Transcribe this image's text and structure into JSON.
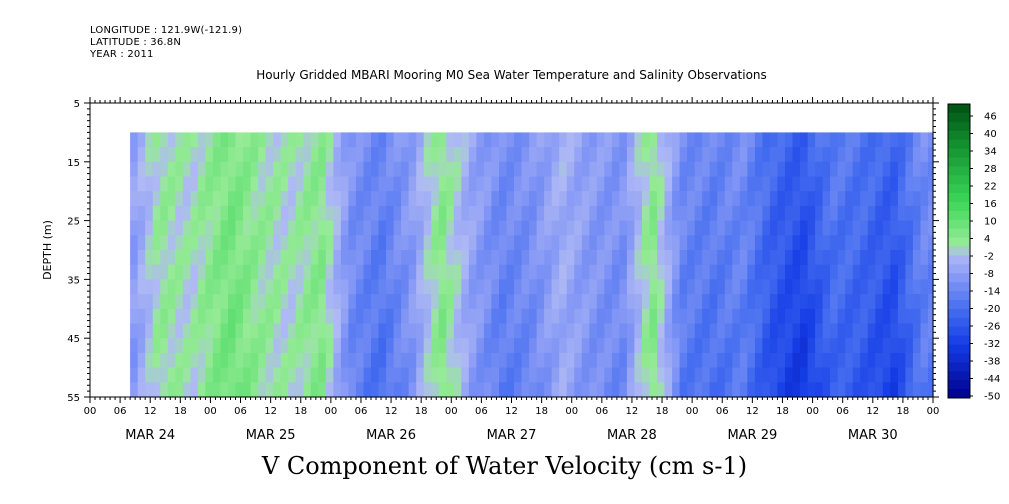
{
  "header": {
    "longitude": "LONGITUDE : 121.9W(-121.9)",
    "latitude": "LATITUDE : 36.8N",
    "year": "YEAR : 2011"
  },
  "chart_data": {
    "type": "heatmap",
    "title": "Hourly Gridded MBARI Mooring M0 Sea Water Temperature and Salinity Observations",
    "xlabel": "V Component of Water Velocity (cm s-1)",
    "ylabel": "DEPTH (m)",
    "ylim": [
      55,
      5
    ],
    "y_ticks": [
      5,
      15,
      25,
      35,
      45,
      55
    ],
    "data_depth_range": [
      10,
      55
    ],
    "x_hour_ticks": [
      "00",
      "06",
      "12",
      "18",
      "00",
      "06",
      "12",
      "18",
      "00",
      "06",
      "12",
      "18",
      "00",
      "06",
      "12",
      "18",
      "00",
      "06",
      "12",
      "18",
      "00",
      "06",
      "12",
      "18",
      "00",
      "06",
      "12",
      "18",
      "00"
    ],
    "x_date_labels": [
      "MAR 24",
      "MAR 25",
      "MAR 26",
      "MAR 27",
      "MAR 28",
      "MAR 29",
      "MAR 30"
    ],
    "colorbar_labels": [
      "46",
      "40",
      "34",
      "28",
      "22",
      "16",
      "10",
      "4",
      "-2",
      "-8",
      "-14",
      "-20",
      "-26",
      "-32",
      "-38",
      "-44",
      "-50"
    ],
    "colorbar_range": [
      -50,
      49
    ],
    "estimated_column_mean_v": [
      {
        "time_hours": 8,
        "v": -8
      },
      {
        "time_hours": 14,
        "v": 2
      },
      {
        "time_hours": 20,
        "v": 0
      },
      {
        "time_hours": 28,
        "v": 6
      },
      {
        "time_hours": 34,
        "v": 2
      },
      {
        "time_hours": 40,
        "v": 0
      },
      {
        "time_hours": 46,
        "v": 4
      },
      {
        "time_hours": 52,
        "v": -10
      },
      {
        "time_hours": 58,
        "v": -14
      },
      {
        "time_hours": 64,
        "v": -8
      },
      {
        "time_hours": 70,
        "v": 4
      },
      {
        "time_hours": 76,
        "v": -6
      },
      {
        "time_hours": 82,
        "v": -12
      },
      {
        "time_hours": 88,
        "v": -10
      },
      {
        "time_hours": 94,
        "v": -4
      },
      {
        "time_hours": 100,
        "v": -8
      },
      {
        "time_hours": 106,
        "v": -10
      },
      {
        "time_hours": 112,
        "v": 4
      },
      {
        "time_hours": 118,
        "v": -12
      },
      {
        "time_hours": 124,
        "v": -14
      },
      {
        "time_hours": 130,
        "v": -12
      },
      {
        "time_hours": 136,
        "v": -20
      },
      {
        "time_hours": 142,
        "v": -24
      },
      {
        "time_hours": 148,
        "v": -16
      },
      {
        "time_hours": 154,
        "v": -18
      },
      {
        "time_hours": 160,
        "v": -22
      },
      {
        "time_hours": 166,
        "v": -12
      }
    ]
  }
}
